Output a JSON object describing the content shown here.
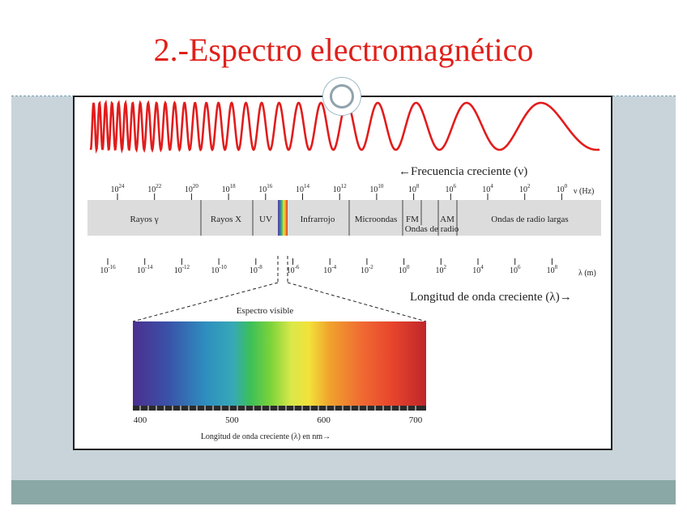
{
  "slide": {
    "title": "2.-Espectro electromagnético"
  },
  "diagram": {
    "freq_label": "←Frecuencia creciente (ν)",
    "wavelength_label": "Longitud de onda creciente (λ)→",
    "freq_ticks": [
      {
        "base": "10",
        "exp": "24"
      },
      {
        "base": "10",
        "exp": "22"
      },
      {
        "base": "10",
        "exp": "20"
      },
      {
        "base": "10",
        "exp": "18"
      },
      {
        "base": "10",
        "exp": "16"
      },
      {
        "base": "10",
        "exp": "14"
      },
      {
        "base": "10",
        "exp": "12"
      },
      {
        "base": "10",
        "exp": "10"
      },
      {
        "base": "10",
        "exp": "8"
      },
      {
        "base": "10",
        "exp": "6"
      },
      {
        "base": "10",
        "exp": "4"
      },
      {
        "base": "10",
        "exp": "2"
      },
      {
        "base": "10",
        "exp": "0"
      }
    ],
    "freq_unit": "ν (Hz)",
    "wave_ticks": [
      {
        "base": "10",
        "exp": "-16"
      },
      {
        "base": "10",
        "exp": "-14"
      },
      {
        "base": "10",
        "exp": "-12"
      },
      {
        "base": "10",
        "exp": "-10"
      },
      {
        "base": "10",
        "exp": "-8"
      },
      {
        "base": "10",
        "exp": "-6"
      },
      {
        "base": "10",
        "exp": "-4"
      },
      {
        "base": "10",
        "exp": "-2"
      },
      {
        "base": "10",
        "exp": "0"
      },
      {
        "base": "10",
        "exp": "2"
      },
      {
        "base": "10",
        "exp": "4"
      },
      {
        "base": "10",
        "exp": "6"
      },
      {
        "base": "10",
        "exp": "8"
      }
    ],
    "wave_unit": "λ (m)",
    "regions": {
      "gamma": "Rayos γ",
      "xray": "Rayos X",
      "uv": "UV",
      "ir": "Infrarrojo",
      "micro": "Microondas",
      "fm": "FM",
      "am": "AM",
      "radio_waves": "Ondas de radio",
      "long_radio": "Ondas de radio largas"
    },
    "visible": {
      "title": "Espectro visible",
      "ticks": [
        "400",
        "500",
        "600",
        "700"
      ],
      "axis_label": "Longitud de onda creciente (λ) en nm→"
    },
    "colors": {
      "wave": "#e21c1c",
      "band": "#dcdcdc",
      "title": "#e0201a"
    }
  }
}
